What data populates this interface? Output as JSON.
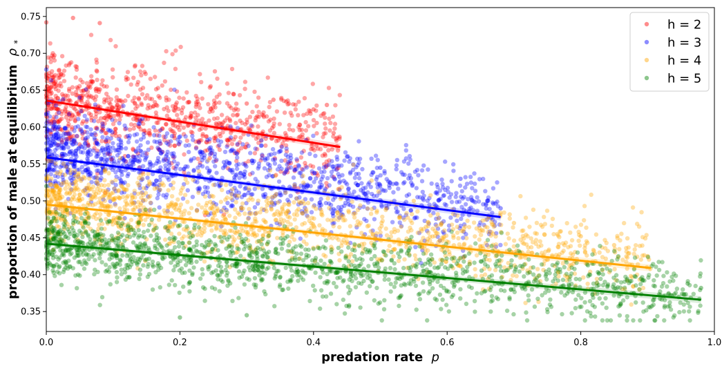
{
  "chart_data": {
    "type": "scatter",
    "xlabel": "predation rate",
    "xlabel_symbol": "p",
    "ylabel": "proportion of male at equilibrium",
    "ylabel_symbol": "ρ",
    "ylabel_subscript": "*",
    "xlim": [
      0.0,
      1.0
    ],
    "ylim": [
      0.323,
      0.762
    ],
    "x_ticks": [
      0.0,
      0.2,
      0.4,
      0.6,
      0.8,
      1.0
    ],
    "x_tick_labels": [
      "0.0",
      "0.2",
      "0.4",
      "0.6",
      "0.8",
      "1.0"
    ],
    "y_ticks": [
      0.35,
      0.4,
      0.45,
      0.5,
      0.55,
      0.6,
      0.65,
      0.7,
      0.75
    ],
    "y_tick_labels": [
      "0.35",
      "0.40",
      "0.45",
      "0.50",
      "0.55",
      "0.60",
      "0.65",
      "0.70",
      "0.75"
    ],
    "grid": false,
    "legend_position": "top-right",
    "series": [
      {
        "name": "h = 2",
        "color": "#ff0000",
        "fit": {
          "x0": 0.0,
          "y0": 0.636,
          "x1": 0.44,
          "y1": 0.573
        },
        "scatter": {
          "x_range": [
            0.0,
            0.44
          ],
          "y_center_at_x0": 0.64,
          "y_center_at_x1": 0.58,
          "spread": 0.055,
          "n": 900
        },
        "annotated_points": [
          [
            0.04,
            0.748
          ],
          [
            0.0,
            0.742
          ],
          [
            0.08,
            0.741
          ],
          [
            0.34,
            0.637
          ],
          [
            0.4,
            0.624
          ],
          [
            0.42,
            0.63
          ],
          [
            0.43,
            0.592
          ],
          [
            0.3,
            0.632
          ],
          [
            0.28,
            0.645
          ]
        ]
      },
      {
        "name": "h = 3",
        "color": "#0000ff",
        "fit": {
          "x0": 0.0,
          "y0": 0.559,
          "x1": 0.68,
          "y1": 0.478
        },
        "scatter": {
          "x_range": [
            0.0,
            0.68
          ],
          "y_center_at_x0": 0.57,
          "y_center_at_x1": 0.49,
          "spread": 0.05,
          "n": 1300
        },
        "annotated_points": [
          [
            0.0,
            0.678
          ],
          [
            0.05,
            0.64
          ],
          [
            0.62,
            0.53
          ],
          [
            0.66,
            0.5
          ],
          [
            0.68,
            0.49
          ],
          [
            0.45,
            0.56
          ],
          [
            0.5,
            0.545
          ]
        ]
      },
      {
        "name": "h = 4",
        "color": "#ffa500",
        "fit": {
          "x0": 0.0,
          "y0": 0.495,
          "x1": 0.905,
          "y1": 0.409
        },
        "scatter": {
          "x_range": [
            0.0,
            0.905
          ],
          "y_center_at_x0": 0.5,
          "y_center_at_x1": 0.42,
          "spread": 0.045,
          "n": 1400
        },
        "annotated_points": [
          [
            0.9,
            0.425
          ],
          [
            0.85,
            0.44
          ],
          [
            0.8,
            0.452
          ],
          [
            0.7,
            0.47
          ],
          [
            0.55,
            0.5
          ]
        ]
      },
      {
        "name": "h = 5",
        "color": "#008000",
        "fit": {
          "x0": 0.0,
          "y0": 0.442,
          "x1": 0.98,
          "y1": 0.366
        },
        "scatter": {
          "x_range": [
            0.0,
            0.98
          ],
          "y_center_at_x0": 0.44,
          "y_center_at_x1": 0.37,
          "spread": 0.04,
          "n": 1500
        },
        "annotated_points": [
          [
            0.98,
            0.382
          ],
          [
            0.96,
            0.388
          ],
          [
            0.2,
            0.342
          ],
          [
            0.3,
            0.345
          ],
          [
            0.0,
            0.52
          ],
          [
            0.86,
            0.36
          ]
        ]
      }
    ]
  }
}
